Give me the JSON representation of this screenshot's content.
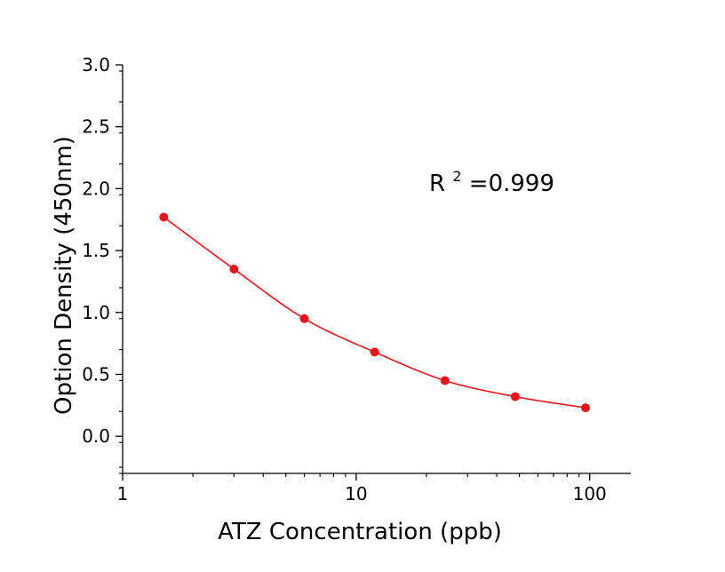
{
  "chart_data": {
    "type": "scatter",
    "title": "",
    "xlabel": "ATZ Concentration (ppb)",
    "ylabel": "Option Density (450nm)",
    "xscale": "log",
    "xlim": [
      1,
      150
    ],
    "ylim": [
      -0.3,
      3.0
    ],
    "x_ticks": [
      1,
      10,
      100
    ],
    "x_tick_labels": [
      "1",
      "10",
      "100"
    ],
    "y_ticks": [
      0.0,
      0.5,
      1.0,
      1.5,
      2.0,
      2.5,
      3.0
    ],
    "y_tick_labels": [
      "0.0",
      "0.5",
      "1.0",
      "1.5",
      "2.0",
      "2.5",
      "3.0"
    ],
    "grid": false,
    "legend": "none",
    "colors": {
      "series": "#e8141b",
      "axis": "#000000"
    },
    "series": [
      {
        "x": [
          1.5,
          3,
          6,
          12,
          24,
          48,
          96
        ],
        "y": [
          1.77,
          1.35,
          0.95,
          0.68,
          0.45,
          0.32,
          0.23
        ],
        "fit": "smooth-curve"
      }
    ],
    "annotation": {
      "base": "R",
      "sup": "2",
      "text": "=0.999"
    }
  }
}
